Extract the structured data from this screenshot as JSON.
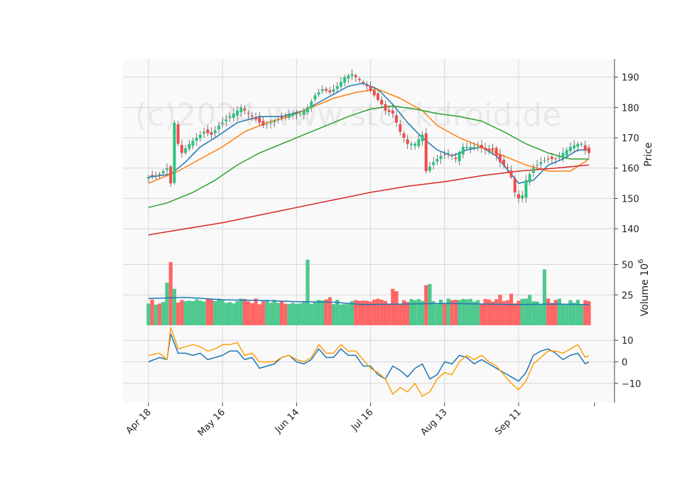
{
  "watermark": "(c)2024 www.stockdroid.de",
  "chart_data": [
    {
      "type": "candlestick",
      "panel": "price",
      "ylabel": "Price",
      "ylim": [
        133,
        196
      ],
      "yticks": [
        140,
        150,
        160,
        170,
        180,
        190
      ],
      "x": [
        "Apr 18",
        "May 16",
        "Jun 14",
        "Jul 16",
        "Aug 13",
        "Sep 11"
      ],
      "x_tick_index": [
        0,
        20,
        40,
        60,
        80,
        100
      ],
      "num_bars": 120,
      "close_anchors": [
        [
          0,
          157
        ],
        [
          3,
          158
        ],
        [
          5,
          160
        ],
        [
          6,
          155
        ],
        [
          7,
          175
        ],
        [
          8,
          168
        ],
        [
          9,
          165
        ],
        [
          11,
          168
        ],
        [
          13,
          170
        ],
        [
          15,
          172
        ],
        [
          17,
          171
        ],
        [
          19,
          174
        ],
        [
          21,
          176
        ],
        [
          23,
          178
        ],
        [
          25,
          180
        ],
        [
          27,
          178
        ],
        [
          29,
          176
        ],
        [
          31,
          174
        ],
        [
          33,
          175
        ],
        [
          35,
          176
        ],
        [
          37,
          177
        ],
        [
          39,
          178
        ],
        [
          41,
          178
        ],
        [
          43,
          180
        ],
        [
          45,
          184
        ],
        [
          47,
          186
        ],
        [
          49,
          185
        ],
        [
          51,
          187
        ],
        [
          53,
          190
        ],
        [
          55,
          191
        ],
        [
          57,
          189
        ],
        [
          59,
          187
        ],
        [
          61,
          184
        ],
        [
          63,
          181
        ],
        [
          64,
          179
        ],
        [
          66,
          178
        ],
        [
          68,
          172
        ],
        [
          70,
          168
        ],
        [
          72,
          168
        ],
        [
          74,
          171
        ],
        [
          75,
          159
        ],
        [
          77,
          162
        ],
        [
          79,
          164
        ],
        [
          81,
          165
        ],
        [
          83,
          163
        ],
        [
          85,
          167
        ],
        [
          87,
          167
        ],
        [
          89,
          167
        ],
        [
          91,
          166
        ],
        [
          93,
          166
        ],
        [
          95,
          162
        ],
        [
          97,
          160
        ],
        [
          98,
          157
        ],
        [
          99,
          152
        ],
        [
          100,
          150
        ],
        [
          101,
          151
        ],
        [
          102,
          156
        ],
        [
          104,
          160
        ],
        [
          106,
          162
        ],
        [
          108,
          163
        ],
        [
          110,
          163
        ],
        [
          112,
          165
        ],
        [
          114,
          167
        ],
        [
          116,
          168
        ],
        [
          117,
          168
        ],
        [
          118,
          166
        ],
        [
          119,
          165
        ]
      ],
      "series": [
        {
          "name": "",
          "color": "#1f77b4",
          "points": [
            [
              0,
              157
            ],
            [
              6,
              158
            ],
            [
              10,
              162
            ],
            [
              14,
              167
            ],
            [
              18,
              170
            ],
            [
              24,
              175
            ],
            [
              30,
              177
            ],
            [
              36,
              177
            ],
            [
              42,
              179
            ],
            [
              48,
              183
            ],
            [
              54,
              187
            ],
            [
              58,
              188
            ],
            [
              62,
              186
            ],
            [
              66,
              181
            ],
            [
              70,
              175
            ],
            [
              74,
              170
            ],
            [
              78,
              166
            ],
            [
              82,
              164
            ],
            [
              86,
              166
            ],
            [
              90,
              167
            ],
            [
              94,
              164
            ],
            [
              98,
              158
            ],
            [
              100,
              155
            ],
            [
              104,
              156
            ],
            [
              108,
              161
            ],
            [
              112,
              163
            ],
            [
              116,
              166
            ],
            [
              119,
              166
            ]
          ]
        },
        {
          "name": "",
          "color": "#ff7f0e",
          "points": [
            [
              0,
              155
            ],
            [
              8,
              159
            ],
            [
              14,
              163
            ],
            [
              20,
              167
            ],
            [
              26,
              172
            ],
            [
              32,
              175
            ],
            [
              38,
              177
            ],
            [
              44,
              180
            ],
            [
              50,
              183
            ],
            [
              56,
              185
            ],
            [
              62,
              186
            ],
            [
              68,
              183
            ],
            [
              74,
              179
            ],
            [
              78,
              174
            ],
            [
              84,
              170
            ],
            [
              90,
              167
            ],
            [
              96,
              164
            ],
            [
              102,
              161
            ],
            [
              108,
              159
            ],
            [
              114,
              159
            ],
            [
              119,
              163
            ]
          ]
        },
        {
          "name": "",
          "color": "#2ca02c",
          "points": [
            [
              0,
              147
            ],
            [
              5,
              148.5
            ],
            [
              12,
              152
            ],
            [
              18,
              156
            ],
            [
              24,
              161
            ],
            [
              30,
              165
            ],
            [
              36,
              168
            ],
            [
              42,
              171
            ],
            [
              48,
              174
            ],
            [
              54,
              177
            ],
            [
              60,
              179.5
            ],
            [
              66,
              180.5
            ],
            [
              72,
              179.5
            ],
            [
              78,
              178
            ],
            [
              84,
              177
            ],
            [
              90,
              175.5
            ],
            [
              96,
              172
            ],
            [
              102,
              168
            ],
            [
              108,
              165
            ],
            [
              114,
              163
            ],
            [
              119,
              163
            ]
          ]
        },
        {
          "name": "",
          "color": "#d62728",
          "points": [
            [
              0,
              138
            ],
            [
              10,
              140
            ],
            [
              20,
              142
            ],
            [
              30,
              144.5
            ],
            [
              40,
              147
            ],
            [
              50,
              149.5
            ],
            [
              60,
              152
            ],
            [
              70,
              154
            ],
            [
              80,
              155.5
            ],
            [
              90,
              157.5
            ],
            [
              100,
              159
            ],
            [
              110,
              160
            ],
            [
              119,
              161
            ]
          ]
        }
      ]
    },
    {
      "type": "bar",
      "panel": "volume",
      "ylabel": "Volume",
      "ylabel_exponent": "6",
      "ylim": [
        0,
        62
      ],
      "yticks": [
        25,
        50
      ],
      "base_volume": 17,
      "spikes": [
        [
          5,
          35
        ],
        [
          6,
          52
        ],
        [
          7,
          30
        ],
        [
          29,
          22
        ],
        [
          43,
          54
        ],
        [
          49,
          23
        ],
        [
          66,
          30
        ],
        [
          67,
          28
        ],
        [
          75,
          33
        ],
        [
          76,
          34
        ],
        [
          81,
          22
        ],
        [
          95,
          25
        ],
        [
          98,
          26
        ],
        [
          103,
          25
        ],
        [
          107,
          46
        ]
      ],
      "series": [
        {
          "name": "",
          "color": "#1f77b4",
          "points": [
            [
              0,
              22
            ],
            [
              10,
              23
            ],
            [
              20,
              21
            ],
            [
              30,
              20.5
            ],
            [
              40,
              19.5
            ],
            [
              50,
              19
            ],
            [
              58,
              17
            ],
            [
              70,
              17.5
            ],
            [
              80,
              18
            ],
            [
              90,
              17.5
            ],
            [
              100,
              17
            ],
            [
              110,
              17.5
            ],
            [
              119,
              17
            ]
          ]
        }
      ]
    },
    {
      "type": "line",
      "panel": "indicator",
      "ylabel": "",
      "ylim": [
        -19,
        17
      ],
      "yticks": [
        -10,
        0,
        10
      ],
      "series": [
        {
          "name": "",
          "color": "#1f77b4",
          "points": [
            [
              0,
              0
            ],
            [
              3,
              2
            ],
            [
              5,
              1
            ],
            [
              6,
              13
            ],
            [
              8,
              4
            ],
            [
              10,
              4
            ],
            [
              12,
              3
            ],
            [
              14,
              4
            ],
            [
              16,
              1
            ],
            [
              18,
              2
            ],
            [
              20,
              3
            ],
            [
              22,
              5
            ],
            [
              24,
              5
            ],
            [
              26,
              1
            ],
            [
              28,
              2
            ],
            [
              30,
              -3
            ],
            [
              34,
              -1
            ],
            [
              36,
              2
            ],
            [
              38,
              3
            ],
            [
              40,
              0
            ],
            [
              42,
              -1
            ],
            [
              44,
              1
            ],
            [
              46,
              6
            ],
            [
              48,
              2
            ],
            [
              50,
              2
            ],
            [
              52,
              6
            ],
            [
              54,
              3
            ],
            [
              56,
              3
            ],
            [
              58,
              -2
            ],
            [
              60,
              -2
            ],
            [
              62,
              -6
            ],
            [
              64,
              -8
            ],
            [
              66,
              -2
            ],
            [
              68,
              -4
            ],
            [
              70,
              -7
            ],
            [
              72,
              -3
            ],
            [
              74,
              -1
            ],
            [
              76,
              -8
            ],
            [
              78,
              -6
            ],
            [
              80,
              0
            ],
            [
              82,
              -1
            ],
            [
              84,
              3
            ],
            [
              86,
              2
            ],
            [
              88,
              -1
            ],
            [
              90,
              1
            ],
            [
              92,
              -1
            ],
            [
              94,
              -3
            ],
            [
              96,
              -5
            ],
            [
              98,
              -7
            ],
            [
              100,
              -9
            ],
            [
              102,
              -5
            ],
            [
              104,
              3
            ],
            [
              106,
              5
            ],
            [
              108,
              6
            ],
            [
              110,
              4
            ],
            [
              112,
              1
            ],
            [
              114,
              3
            ],
            [
              116,
              4
            ],
            [
              118,
              -1
            ],
            [
              119,
              0
            ]
          ]
        },
        {
          "name": "",
          "color": "#ff9f0e",
          "points": [
            [
              0,
              3
            ],
            [
              3,
              4
            ],
            [
              5,
              1
            ],
            [
              6,
              16
            ],
            [
              8,
              6
            ],
            [
              10,
              7
            ],
            [
              12,
              8
            ],
            [
              14,
              7
            ],
            [
              16,
              5
            ],
            [
              18,
              6
            ],
            [
              20,
              8
            ],
            [
              22,
              8
            ],
            [
              24,
              9
            ],
            [
              26,
              3
            ],
            [
              28,
              4
            ],
            [
              30,
              0
            ],
            [
              34,
              0
            ],
            [
              36,
              2
            ],
            [
              38,
              3
            ],
            [
              40,
              1
            ],
            [
              42,
              0
            ],
            [
              44,
              2
            ],
            [
              46,
              8
            ],
            [
              48,
              4
            ],
            [
              50,
              4
            ],
            [
              52,
              8
            ],
            [
              54,
              5
            ],
            [
              56,
              5
            ],
            [
              58,
              1
            ],
            [
              60,
              -3
            ],
            [
              62,
              -5
            ],
            [
              64,
              -8
            ],
            [
              66,
              -15
            ],
            [
              68,
              -12
            ],
            [
              70,
              -14
            ],
            [
              72,
              -10
            ],
            [
              74,
              -16
            ],
            [
              76,
              -14
            ],
            [
              78,
              -8
            ],
            [
              80,
              -5
            ],
            [
              82,
              -6
            ],
            [
              84,
              0
            ],
            [
              86,
              3
            ],
            [
              88,
              1
            ],
            [
              90,
              3
            ],
            [
              92,
              0
            ],
            [
              94,
              -2
            ],
            [
              96,
              -6
            ],
            [
              98,
              -10
            ],
            [
              100,
              -13
            ],
            [
              102,
              -9
            ],
            [
              104,
              -1
            ],
            [
              106,
              2
            ],
            [
              108,
              5
            ],
            [
              110,
              5
            ],
            [
              112,
              4
            ],
            [
              114,
              6
            ],
            [
              116,
              8
            ],
            [
              118,
              2
            ],
            [
              119,
              3
            ]
          ]
        }
      ]
    }
  ]
}
